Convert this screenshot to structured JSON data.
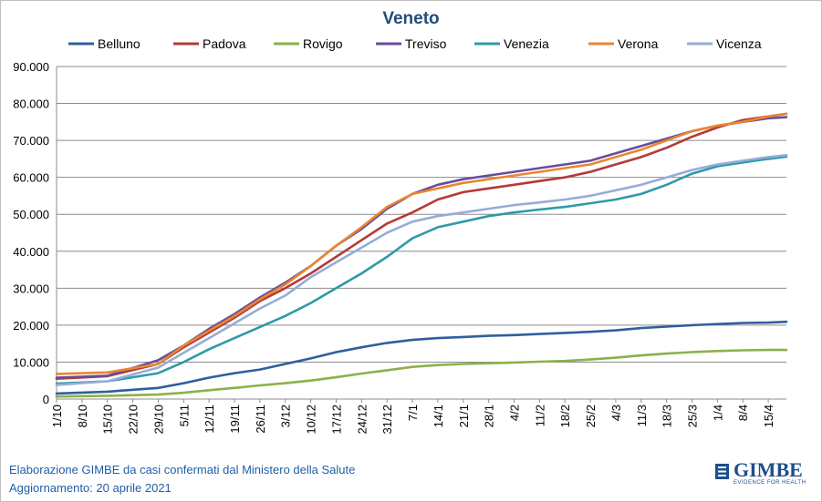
{
  "chart_data": {
    "type": "line",
    "title": "Veneto",
    "xlabel": "",
    "ylabel": "",
    "ylim": [
      0,
      90000
    ],
    "y_ticks": [
      "0",
      "10.000",
      "20.000",
      "30.000",
      "40.000",
      "50.000",
      "60.000",
      "70.000",
      "80.000",
      "90.000"
    ],
    "x_ticks": [
      "1/10",
      "8/10",
      "15/10",
      "22/10",
      "29/10",
      "5/11",
      "12/11",
      "19/11",
      "26/11",
      "3/12",
      "10/12",
      "17/12",
      "24/12",
      "31/12",
      "7/1",
      "14/1",
      "21/1",
      "28/1",
      "4/2",
      "11/2",
      "18/2",
      "25/2",
      "4/3",
      "11/3",
      "18/3",
      "25/3",
      "1/4",
      "8/4",
      "15/4"
    ],
    "x_tick_days": [
      0,
      7,
      14,
      21,
      28,
      35,
      42,
      49,
      56,
      63,
      70,
      77,
      84,
      91,
      98,
      105,
      112,
      119,
      126,
      133,
      140,
      147,
      154,
      161,
      168,
      175,
      182,
      189,
      196
    ],
    "x_range_days": [
      0,
      201
    ],
    "grid": "horizontal",
    "legend_position": "top",
    "series_days": [
      0,
      14,
      28,
      35,
      42,
      49,
      56,
      63,
      70,
      77,
      84,
      91,
      98,
      105,
      112,
      119,
      126,
      133,
      140,
      147,
      154,
      161,
      168,
      175,
      182,
      189,
      196,
      201
    ],
    "series": [
      {
        "name": "Belluno",
        "color": "#2e5f9e",
        "values": [
          1500,
          2000,
          3000,
          4300,
          5800,
          7000,
          8000,
          9500,
          11000,
          12700,
          14000,
          15200,
          16000,
          16500,
          16800,
          17100,
          17300,
          17600,
          17900,
          18200,
          18600,
          19200,
          19600,
          20000,
          20300,
          20600,
          20700,
          20900
        ]
      },
      {
        "name": "Padova",
        "color": "#b33a3a",
        "values": [
          5500,
          6200,
          9500,
          14000,
          18000,
          22000,
          26500,
          30000,
          34000,
          38500,
          43000,
          47500,
          50500,
          54000,
          56000,
          57000,
          58000,
          59000,
          60000,
          61500,
          63500,
          65500,
          68000,
          71000,
          73500,
          75500,
          76500,
          77200
        ]
      },
      {
        "name": "Rovigo",
        "color": "#8db04a",
        "values": [
          700,
          900,
          1200,
          1700,
          2400,
          3000,
          3700,
          4300,
          5000,
          5900,
          6900,
          7800,
          8700,
          9200,
          9500,
          9700,
          9900,
          10100,
          10300,
          10700,
          11200,
          11800,
          12300,
          12700,
          13000,
          13200,
          13300,
          13300
        ]
      },
      {
        "name": "Treviso",
        "color": "#6a4c9c",
        "values": [
          5800,
          6300,
          10500,
          14500,
          19000,
          23000,
          27500,
          31500,
          36000,
          41500,
          46000,
          51500,
          55500,
          58000,
          59500,
          60500,
          61500,
          62500,
          63500,
          64500,
          66500,
          68500,
          70500,
          72500,
          74000,
          75000,
          76000,
          76300
        ]
      },
      {
        "name": "Venezia",
        "color": "#2f9aa8",
        "values": [
          4200,
          4800,
          7000,
          10000,
          13500,
          16500,
          19500,
          22500,
          26000,
          30000,
          34000,
          38500,
          43500,
          46500,
          48000,
          49500,
          50500,
          51300,
          52000,
          53000,
          54000,
          55500,
          58000,
          61000,
          63000,
          64000,
          65000,
          65600
        ]
      },
      {
        "name": "Verona",
        "color": "#e8872f",
        "values": [
          6800,
          7200,
          9500,
          14500,
          18500,
          22500,
          27000,
          31000,
          36000,
          41500,
          46500,
          52000,
          55500,
          57000,
          58500,
          59500,
          60500,
          61500,
          62500,
          63500,
          65500,
          67500,
          70000,
          72500,
          74000,
          75000,
          76500,
          77200
        ]
      },
      {
        "name": "Vicenza",
        "color": "#97acd6",
        "values": [
          3800,
          4800,
          8500,
          12500,
          16500,
          20500,
          24500,
          28000,
          33000,
          37000,
          41000,
          45000,
          48000,
          49500,
          50500,
          51500,
          52500,
          53200,
          54000,
          55000,
          56500,
          58000,
          60000,
          62000,
          63500,
          64500,
          65500,
          66000
        ]
      }
    ]
  },
  "footer": {
    "line1": "Elaborazione GIMBE da casi confermati dal Ministero della Salute",
    "line2": "Aggiornamento: 20 aprile 2021"
  },
  "logo": {
    "name": "GIMBE",
    "tagline": "EVIDENCE FOR HEALTH",
    "color": "#1f4e8c"
  }
}
